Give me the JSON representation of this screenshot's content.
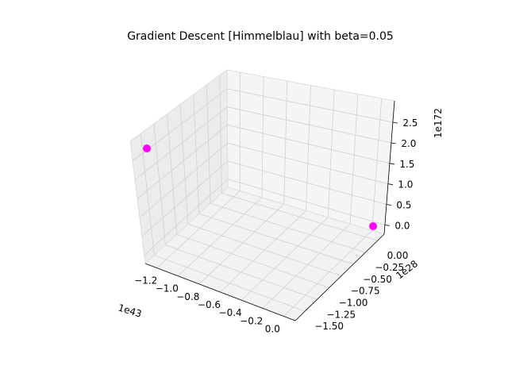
{
  "chart_data": {
    "type": "scatter3d",
    "title": "Gradient Descent [Himmelblau] with beta=0.05",
    "xlabel": "",
    "ylabel": "",
    "zlabel": "",
    "x_offset_text": "1e43",
    "y_offset_text": "1e28",
    "z_offset_text": "1e172",
    "x_ticks": [
      "−1.2",
      "−1.0",
      "−0.8",
      "−0.6",
      "−0.4",
      "−0.2",
      "0.0"
    ],
    "y_ticks": [
      "0.00",
      "−0.25",
      "−0.50",
      "−0.75",
      "−1.00",
      "−1.25",
      "−1.50"
    ],
    "z_ticks": [
      "0.0",
      "0.5",
      "1.0",
      "1.5",
      "2.0",
      "2.5"
    ],
    "grid": true,
    "point_color": "#ff00ff",
    "points": [
      {
        "x": -1.35,
        "y": -1.6,
        "z": 2.05
      },
      {
        "x": 0.0,
        "y": 0.0,
        "z": 0.0
      }
    ]
  }
}
